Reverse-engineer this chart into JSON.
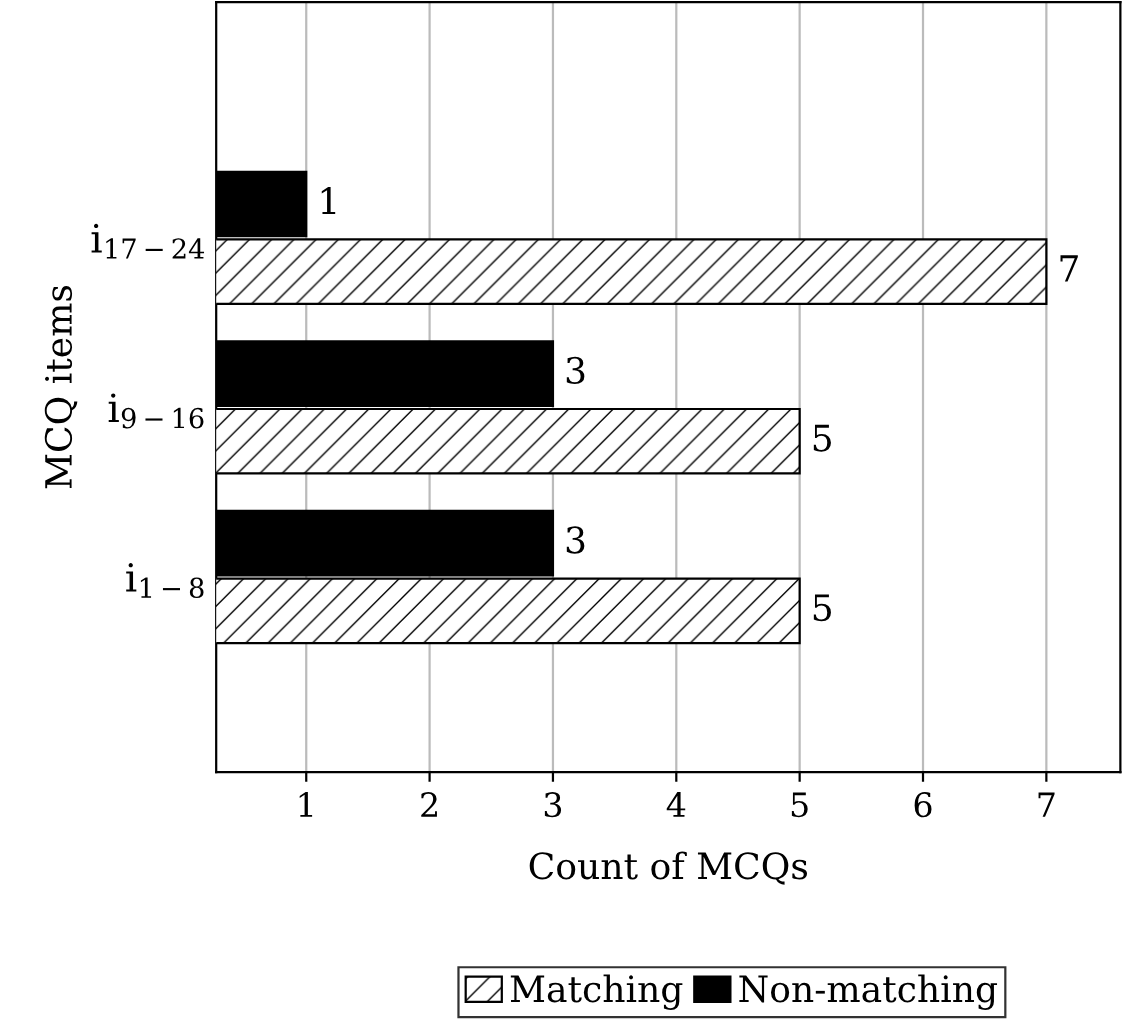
{
  "chart_data": {
    "type": "bar",
    "orientation": "horizontal",
    "categories": [
      "i$_{17−24}$",
      "i$_{9−16}$",
      "i$_{1−8}$"
    ],
    "series": [
      {
        "name": "Matching",
        "color": "#000000",
        "values": [
          7,
          5,
          5
        ]
      },
      {
        "name": "Non-matching",
        "color": "#000000",
        "values": [
          1,
          3,
          3
        ]
      }
    ],
    "xlabel": "Count of MCQs",
    "ylabel": "MCQ items",
    "xlim": [
      0.27,
      7.6
    ],
    "xticks": [
      1,
      2,
      3,
      4,
      5,
      6,
      7
    ],
    "grid": "x",
    "legend": "bottom",
    "data_labels": true
  }
}
